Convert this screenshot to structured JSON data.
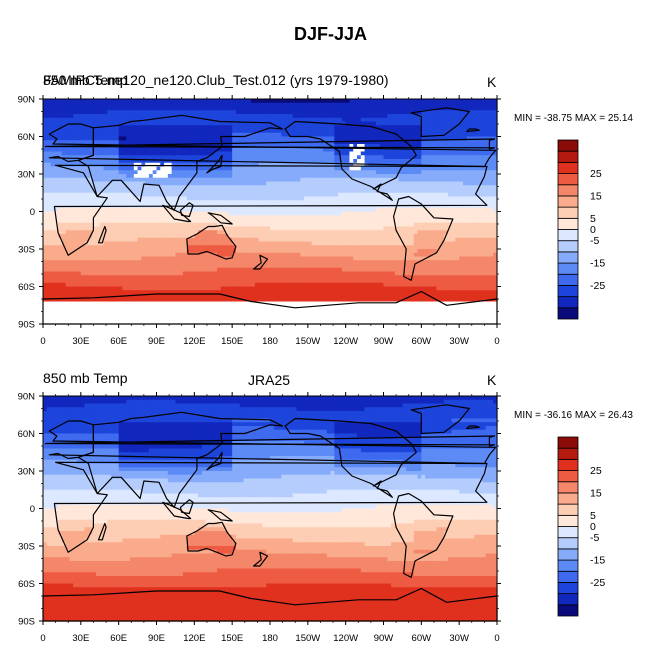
{
  "figure_title": "DJF-JJA",
  "colors": {
    "levels": [
      "#0a0a7a",
      "#1127bd",
      "#1d45db",
      "#3e6af0",
      "#5c8bf6",
      "#86abfa",
      "#b4cdfd",
      "#dce8ff",
      "#ffe7d9",
      "#fdcdb4",
      "#f9ab8c",
      "#f4866a",
      "#ee5b43",
      "#e0301e",
      "#b51a10",
      "#8a0b08"
    ],
    "land_outline": "#000000",
    "missing": "#ffffff"
  },
  "chart_data": [
    {
      "type": "heatmap",
      "panel_title": "850 mb Temp",
      "center_title": "FAMIPC5.ne120_ne120.Club_Test.012 (yrs 1979-1980)",
      "overlap_text": "850 mb Temp",
      "units": "K",
      "min_max_text": "MIN = -38.75 MAX =  25.14",
      "min": -38.75,
      "max": 25.14,
      "has_missing": true,
      "x_ticks": [
        "0",
        "30E",
        "60E",
        "90E",
        "120E",
        "150E",
        "180",
        "150W",
        "120W",
        "90W",
        "60W",
        "30W",
        "0"
      ],
      "y_ticks": [
        "90N",
        "60N",
        "30N",
        "0",
        "30S",
        "60S",
        "90S"
      ],
      "colorbar_levels": [
        -35,
        -30,
        -25,
        -20,
        -15,
        -10,
        -5,
        0,
        5,
        10,
        15,
        20,
        25
      ],
      "colorbar_labels": [
        "25",
        "15",
        "5",
        "0",
        "-5",
        "-15",
        "-25"
      ]
    },
    {
      "type": "heatmap",
      "panel_title": "850 mb Temp",
      "center_title": "JRA25",
      "units": "K",
      "min_max_text": "MIN = -36.16 MAX =  26.43",
      "min": -36.16,
      "max": 26.43,
      "has_missing": false,
      "x_ticks": [
        "0",
        "30E",
        "60E",
        "90E",
        "120E",
        "150E",
        "180",
        "150W",
        "120W",
        "90W",
        "60W",
        "30W",
        "0"
      ],
      "y_ticks": [
        "90N",
        "60N",
        "30N",
        "0",
        "30S",
        "60S",
        "90S"
      ],
      "colorbar_levels": [
        -35,
        -30,
        -25,
        -20,
        -15,
        -10,
        -5,
        0,
        5,
        10,
        15,
        20,
        25
      ],
      "colorbar_labels": [
        "25",
        "15",
        "5",
        "0",
        "-5",
        "-15",
        "-25"
      ]
    }
  ]
}
